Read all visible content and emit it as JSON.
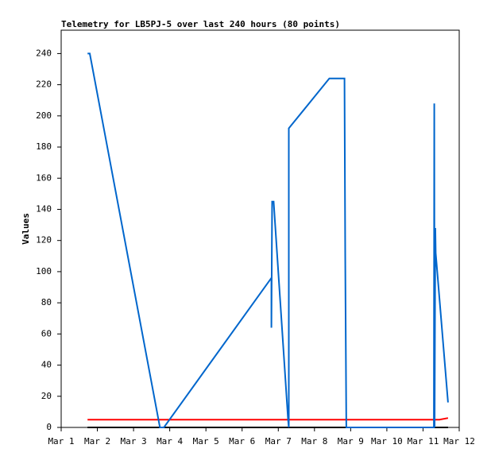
{
  "chart_data": {
    "type": "line",
    "title": "Telemetry for LB5PJ-5 over last 240 hours (80 points)",
    "y_label": "Values",
    "xlim": [
      1,
      12
    ],
    "xticks": [
      {
        "value": 1,
        "label": "Mar 1"
      },
      {
        "value": 2,
        "label": "Mar 2"
      },
      {
        "value": 3,
        "label": "Mar 3"
      },
      {
        "value": 4,
        "label": "Mar 4"
      },
      {
        "value": 5,
        "label": "Mar 5"
      },
      {
        "value": 6,
        "label": "Mar 6"
      },
      {
        "value": 7,
        "label": "Mar 7"
      },
      {
        "value": 8,
        "label": "Mar 8"
      },
      {
        "value": 9,
        "label": "Mar 9"
      },
      {
        "value": 10,
        "label": "Mar 10"
      },
      {
        "value": 11,
        "label": "Mar 11"
      },
      {
        "value": 12,
        "label": "Mar 12"
      }
    ],
    "ylim": [
      0,
      255
    ],
    "yticks": [
      0,
      20,
      40,
      60,
      80,
      100,
      120,
      140,
      160,
      180,
      200,
      220,
      240
    ],
    "series": [
      {
        "color": "#000000",
        "x": [
          1.73,
          11.69
        ],
        "values": [
          0,
          0
        ]
      },
      {
        "color": "#ff0000",
        "x": [
          1.73,
          11.45,
          11.69
        ],
        "values": [
          5,
          5,
          6
        ]
      },
      {
        "color": "#0066cc",
        "x": [
          1.73,
          1.79,
          3.73,
          3.84,
          6.81,
          6.81,
          6.83,
          6.87,
          7.27,
          7.29,
          7.29,
          8.41,
          8.83,
          8.85,
          8.88,
          11.3,
          11.31,
          11.32,
          11.34,
          11.35,
          11.69
        ],
        "values": [
          240,
          240,
          0,
          0,
          96,
          64,
          145,
          145,
          5,
          0,
          192,
          224,
          224,
          112,
          0,
          0,
          208,
          0,
          128,
          112,
          16
        ]
      }
    ]
  }
}
